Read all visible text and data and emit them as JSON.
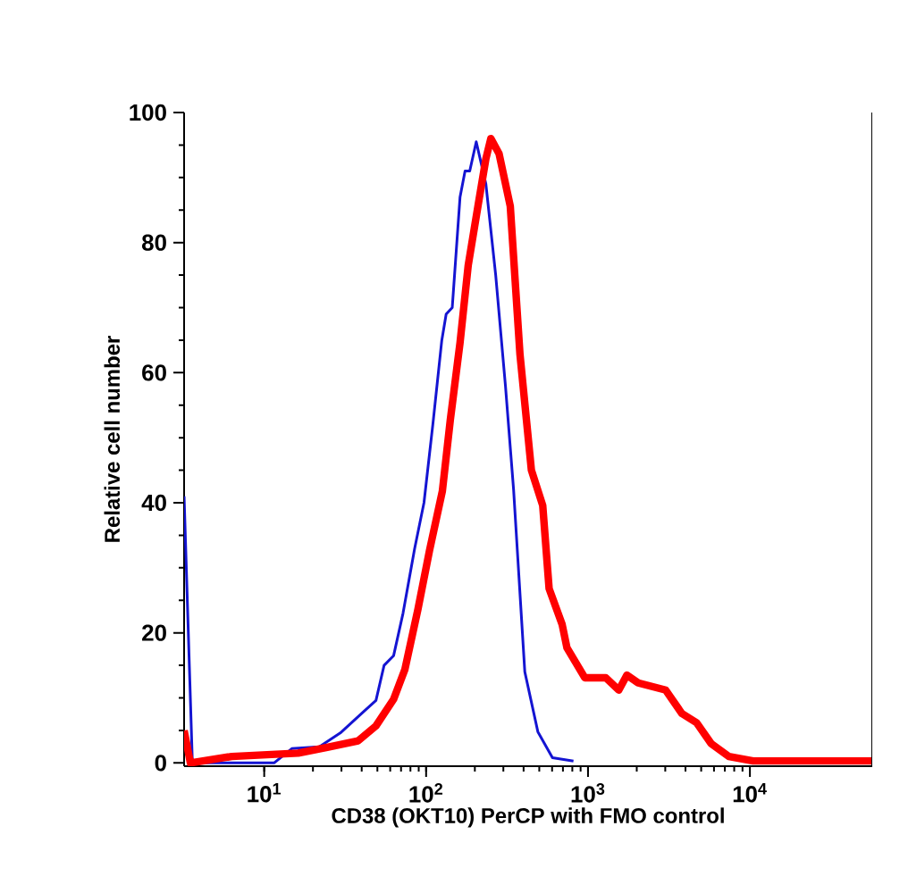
{
  "chart_data": {
    "type": "line",
    "xlabel": "CD38 (OKT10) PerCP with FMO control",
    "ylabel": "Relative cell number",
    "log": "x",
    "xlim": [
      3.2,
      57000
    ],
    "ylim": [
      -0.5,
      100
    ],
    "xticks": [
      {
        "value": 10,
        "label": "10$^{1}$"
      },
      {
        "value": 100,
        "label": "10$^{2}$"
      },
      {
        "value": 1000,
        "label": "10$^{3}$"
      },
      {
        "value": 10000,
        "label": "10$^{4}$"
      }
    ],
    "yticks": [
      0,
      20,
      40,
      60,
      80,
      100
    ],
    "series": [
      {
        "color": "#1414d2",
        "x": [
          3.2,
          3.6,
          11.5,
          14.8,
          21.9,
          29.5,
          40.7,
          49,
          55,
          63,
          72,
          85,
          97,
          110,
          125,
          133,
          145,
          162,
          174,
          186,
          204,
          234,
          269,
          309,
          347,
          407,
          490,
          603,
          813
        ],
        "values": [
          41,
          0,
          0,
          2.2,
          2.5,
          4.6,
          7.8,
          9.6,
          15,
          16.5,
          23,
          33,
          40,
          52,
          65,
          69,
          70,
          87,
          91,
          91,
          95.5,
          89,
          75,
          58,
          42,
          14,
          4.8,
          0.8,
          0.3
        ]
      },
      {
        "color": "#ff0000",
        "x": [
          3.2,
          3.5,
          6.3,
          16.2,
          24.5,
          38,
          49,
          63,
          74,
          89,
          105,
          126,
          141,
          162,
          182,
          209,
          234,
          251,
          282,
          331,
          380,
          447,
          525,
          575,
          692,
          741,
          955,
          1288,
          1549,
          1738,
          2042,
          3020,
          3802,
          4677,
          5754,
          7413,
          10470,
          57000
        ],
        "values": [
          5,
          0,
          1,
          1.5,
          2.4,
          3.4,
          5.7,
          9.8,
          14.4,
          23.6,
          32.7,
          41.8,
          52.7,
          64.6,
          76.5,
          85.6,
          92.9,
          96,
          93.7,
          85.6,
          62.8,
          45,
          39.6,
          26.8,
          21.3,
          17.7,
          13.1,
          13.1,
          11.2,
          13.5,
          12.3,
          11.2,
          7.6,
          6.2,
          3,
          1,
          0.3,
          0.3
        ]
      }
    ]
  }
}
